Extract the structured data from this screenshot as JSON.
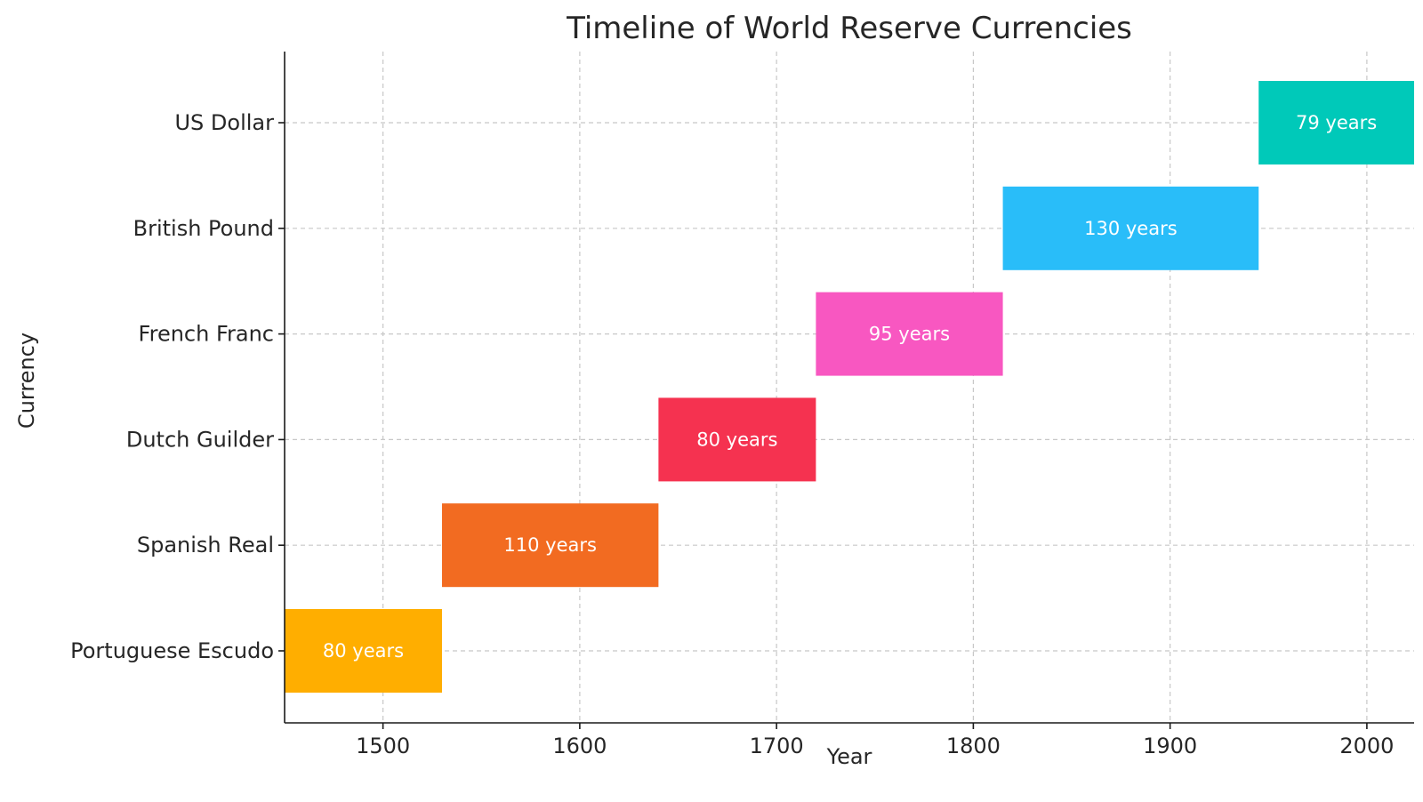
{
  "chart_data": {
    "type": "bar",
    "orientation": "horizontal",
    "title": "Timeline of World Reserve Currencies",
    "xlabel": "Year",
    "ylabel": "Currency",
    "xlim": [
      1450,
      2024
    ],
    "xticks": [
      1500,
      1600,
      1700,
      1800,
      1900,
      2000
    ],
    "xtick_labels": [
      "1500",
      "1600",
      "1700",
      "1800",
      "1900",
      "2000"
    ],
    "grid": true,
    "legend": "none",
    "categories": [
      "Portuguese Escudo",
      "Spanish Real",
      "Dutch Guilder",
      "French Franc",
      "British Pound",
      "US Dollar"
    ],
    "bars": [
      {
        "category": "Portuguese Escudo",
        "start": 1450,
        "end": 1530,
        "label": "80 years",
        "color": "#FFAE00"
      },
      {
        "category": "Spanish Real",
        "start": 1530,
        "end": 1640,
        "label": "110 years",
        "color": "#F26B21"
      },
      {
        "category": "Dutch Guilder",
        "start": 1640,
        "end": 1720,
        "label": "80 years",
        "color": "#F53250"
      },
      {
        "category": "French Franc",
        "start": 1720,
        "end": 1815,
        "label": "95 years",
        "color": "#F857C1"
      },
      {
        "category": "British Pound",
        "start": 1815,
        "end": 1945,
        "label": "130 years",
        "color": "#29BDF9"
      },
      {
        "category": "US Dollar",
        "start": 1945,
        "end": 2024,
        "label": "79 years",
        "color": "#00C9B9"
      }
    ]
  }
}
